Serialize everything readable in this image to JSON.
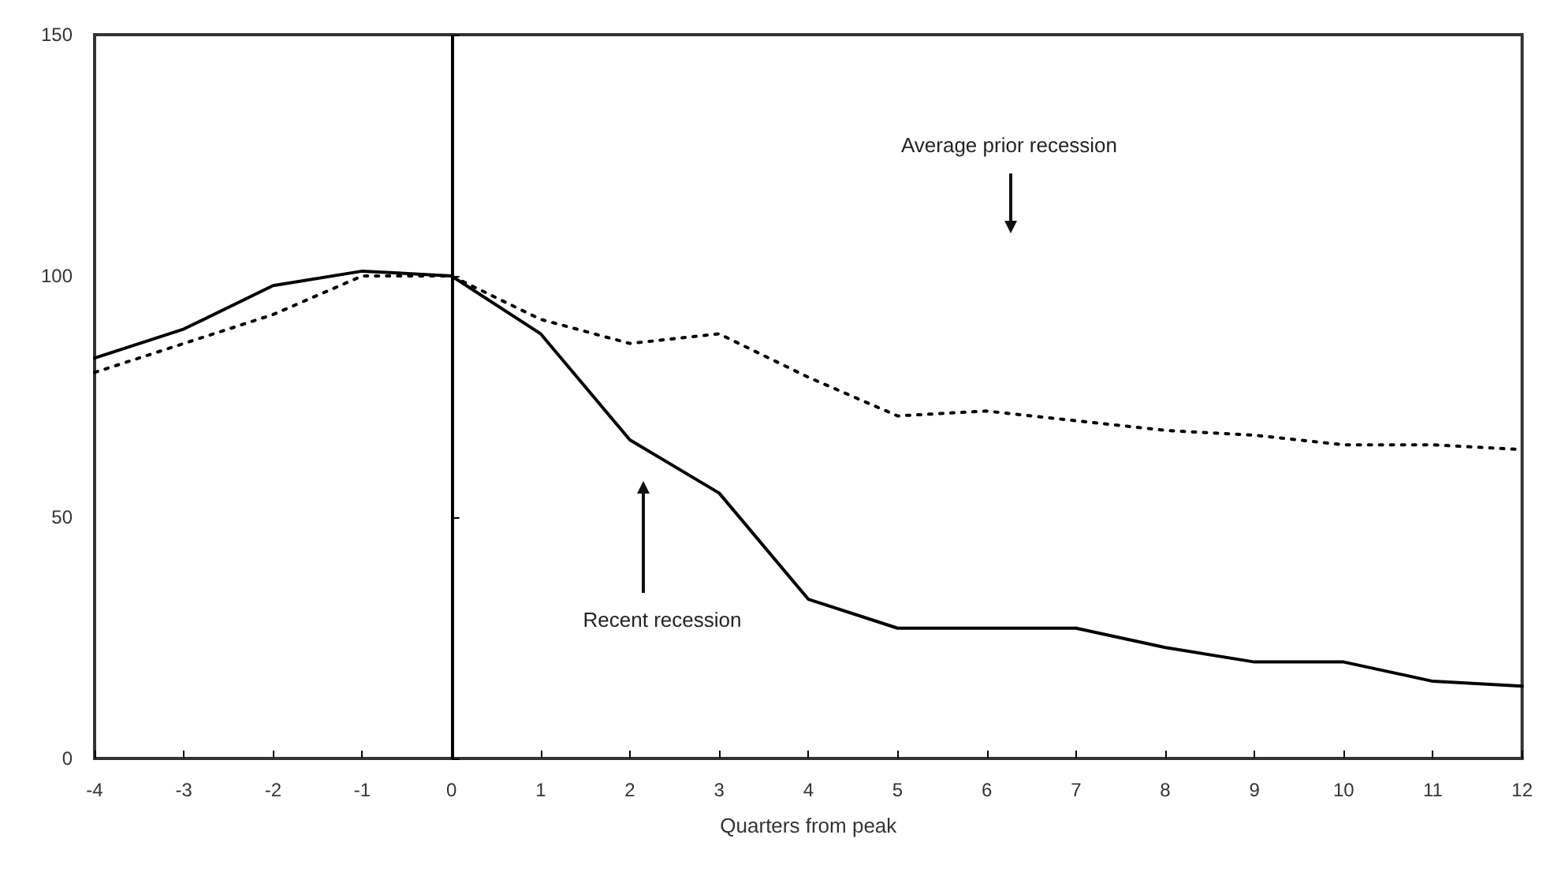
{
  "chart_data": {
    "type": "line",
    "xlabel": "Quarters from peak",
    "x": [
      -4,
      -3,
      -2,
      -1,
      0,
      1,
      2,
      3,
      4,
      5,
      6,
      7,
      8,
      9,
      10,
      11,
      12
    ],
    "xlim": [
      -4,
      12
    ],
    "xticks": [
      -4,
      -3,
      -2,
      -1,
      0,
      1,
      2,
      3,
      4,
      5,
      6,
      7,
      8,
      9,
      10,
      11,
      12
    ],
    "ylim": [
      0,
      150
    ],
    "yticks": [
      0,
      50,
      100,
      150
    ],
    "grid": false,
    "marker": "none",
    "series": [
      {
        "color": "#000000",
        "line_style": "solid",
        "values": [
          83,
          89,
          98,
          101,
          100,
          88,
          66,
          55,
          33,
          27,
          27,
          27,
          23,
          20,
          20,
          16,
          15
        ]
      },
      {
        "color": "#000000",
        "line_style": "dotted",
        "values": [
          80,
          86,
          92,
          100,
          100,
          91,
          86,
          88,
          79,
          71,
          72,
          70,
          68,
          67,
          65,
          65,
          64
        ]
      }
    ],
    "ref_lines": [
      {
        "axis": "x",
        "value": 0,
        "color": "#000000",
        "line_style": "solid"
      }
    ],
    "annotations": [
      "Average prior recession",
      "Recent recession"
    ]
  }
}
